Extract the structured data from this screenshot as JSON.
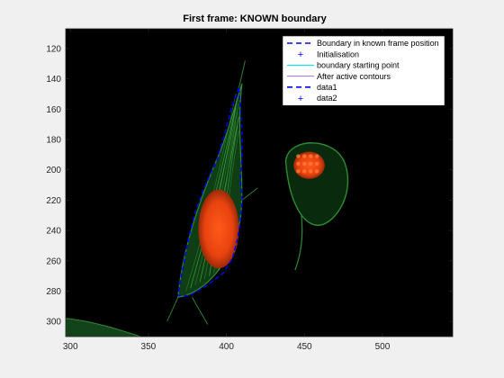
{
  "chart_data": {
    "type": "line",
    "title": "First frame: KNOWN boundary",
    "xlabel": "",
    "ylabel": "",
    "xlim": [
      297,
      545
    ],
    "ylim": [
      310,
      107
    ],
    "y_reversed": true,
    "grid": false,
    "background_image": "fluorescence micrograph of two cells (green cytoskeleton, red nuclei) on black",
    "x_ticks": [
      300,
      350,
      400,
      450,
      500
    ],
    "y_ticks": [
      120,
      140,
      160,
      180,
      200,
      220,
      240,
      260,
      280,
      300
    ],
    "x_tick_labels": [
      "300",
      "350",
      "400",
      "450",
      "500"
    ],
    "y_tick_labels": [
      "120",
      "140",
      "160",
      "180",
      "200",
      "220",
      "240",
      "260",
      "280",
      "300"
    ],
    "legend_position": "top-right",
    "legend": [
      {
        "label": "Boundary in known frame position",
        "style": "dashed",
        "color": "#0000ff"
      },
      {
        "label": "Initialisation",
        "style": "plus-marker",
        "color": "#0000ff"
      },
      {
        "label": "boundary starting point",
        "style": "solid",
        "color": "#00e5ee"
      },
      {
        "label": "After active contours",
        "style": "solid",
        "color": "#b07fdc"
      },
      {
        "label": "data1",
        "style": "dashed",
        "color": "#0000ff"
      },
      {
        "label": "data2",
        "style": "plus-marker",
        "color": "#0000ff"
      }
    ],
    "series": [
      {
        "name": "Boundary in known frame position",
        "style": "dashed",
        "color": "#0000ff",
        "points": [
          [
            408,
            146
          ],
          [
            403,
            160
          ],
          [
            399,
            176
          ],
          [
            396,
            186
          ],
          [
            394,
            194
          ],
          [
            390,
            202
          ],
          [
            385,
            214
          ],
          [
            380,
            228
          ],
          [
            376,
            244
          ],
          [
            373,
            260
          ],
          [
            370,
            276
          ],
          [
            369,
            283
          ],
          [
            376,
            283
          ],
          [
            388,
            276
          ],
          [
            398,
            268
          ],
          [
            404,
            258
          ],
          [
            407,
            246
          ],
          [
            409,
            234
          ],
          [
            410,
            220
          ],
          [
            409,
            206
          ],
          [
            410,
            192
          ],
          [
            410,
            176
          ],
          [
            409,
            160
          ],
          [
            408,
            146
          ]
        ]
      }
    ]
  }
}
